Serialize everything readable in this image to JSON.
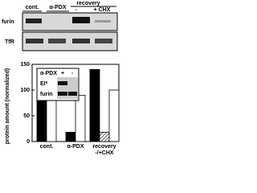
{
  "blot": {
    "labels": [
      "cont.",
      "α-PDX",
      "recovery",
      "-",
      "+ CHX"
    ],
    "rows": [
      "furin",
      "TfR"
    ]
  },
  "chart_data": {
    "type": "bar",
    "ylabel": "protein amount (normalized)",
    "categories": [
      "cont.",
      "α-PDX",
      "recovery -/+CHX"
    ],
    "series": [
      {
        "color": "#000000",
        "values": [
          100,
          18,
          140
        ]
      },
      {
        "color": "#ffffff",
        "pattern": "hatch",
        "values": [
          null,
          null,
          18
        ]
      },
      {
        "color": "#ffffff",
        "values": [
          100,
          90,
          100
        ]
      }
    ],
    "ylim": [
      0,
      150
    ],
    "yticks": [
      0,
      50,
      100,
      150
    ],
    "inset": {
      "header": "α-PDX",
      "lanes": [
        "+",
        "-"
      ],
      "rows": [
        "EI*",
        "furin"
      ]
    }
  }
}
